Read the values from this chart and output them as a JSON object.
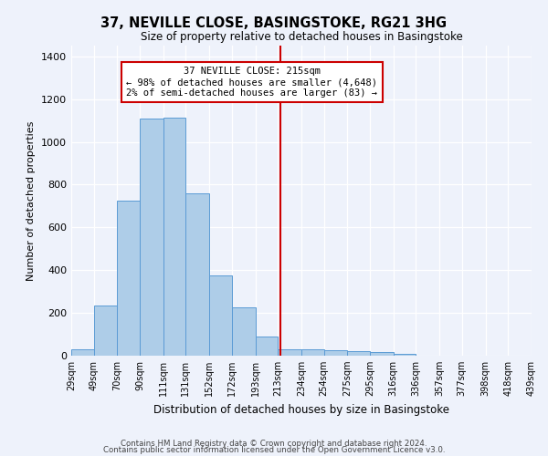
{
  "title": "37, NEVILLE CLOSE, BASINGSTOKE, RG21 3HG",
  "subtitle": "Size of property relative to detached houses in Basingstoke",
  "xlabel": "Distribution of detached houses by size in Basingstoke",
  "ylabel": "Number of detached properties",
  "bar_color": "#aecde8",
  "bar_edge_color": "#5b9bd5",
  "background_color": "#eef2fb",
  "grid_color": "#ffffff",
  "vline_x": 215,
  "vline_color": "#cc0000",
  "annotation_text": "37 NEVILLE CLOSE: 215sqm\n← 98% of detached houses are smaller (4,648)\n2% of semi-detached houses are larger (83) →",
  "annotation_box_color": "#cc0000",
  "bin_edges": [
    29,
    49,
    70,
    90,
    111,
    131,
    152,
    172,
    193,
    213,
    234,
    254,
    275,
    295,
    316,
    336,
    357,
    377,
    398,
    418,
    439
  ],
  "bin_labels": [
    "29sqm",
    "49sqm",
    "70sqm",
    "90sqm",
    "111sqm",
    "131sqm",
    "152sqm",
    "172sqm",
    "193sqm",
    "213sqm",
    "234sqm",
    "254sqm",
    "275sqm",
    "295sqm",
    "316sqm",
    "336sqm",
    "357sqm",
    "377sqm",
    "398sqm",
    "418sqm",
    "439sqm"
  ],
  "bar_heights": [
    30,
    235,
    725,
    1110,
    1115,
    760,
    375,
    225,
    90,
    30,
    30,
    25,
    20,
    15,
    10,
    0,
    0,
    0,
    0,
    0
  ],
  "ylim": [
    0,
    1450
  ],
  "yticks": [
    0,
    200,
    400,
    600,
    800,
    1000,
    1200,
    1400
  ],
  "footnote1": "Contains HM Land Registry data © Crown copyright and database right 2024.",
  "footnote2": "Contains public sector information licensed under the Open Government Licence v3.0."
}
